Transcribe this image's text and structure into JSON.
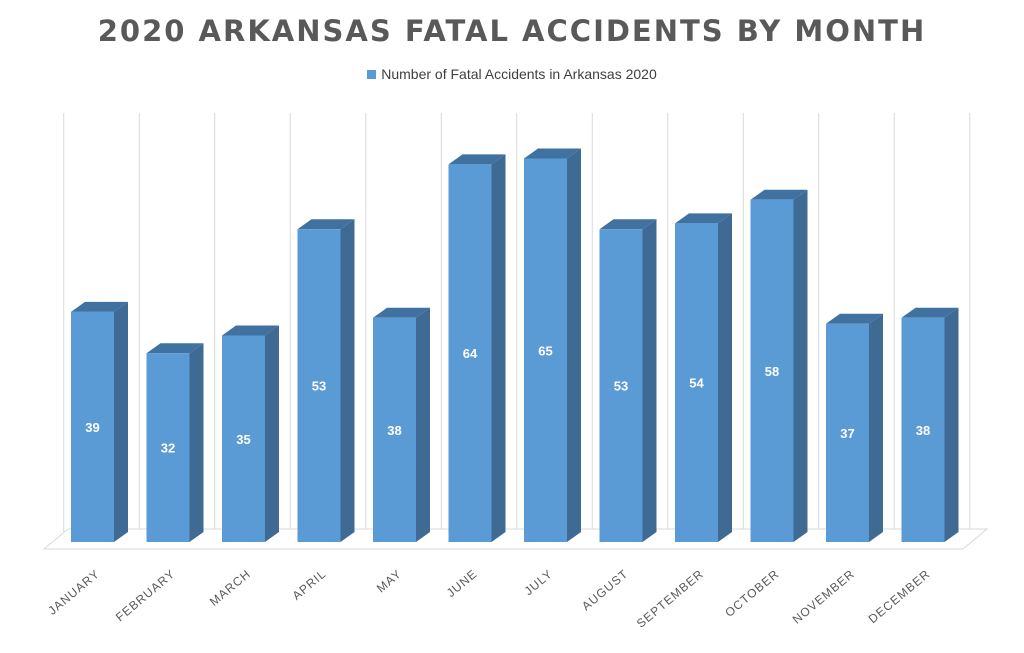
{
  "chart_data": {
    "type": "bar",
    "title": "2020 ARKANSAS FATAL ACCIDENTS BY MONTH",
    "categories": [
      "JANUARY",
      "FEBRUARY",
      "MARCH",
      "APRIL",
      "MAY",
      "JUNE",
      "JULY",
      "AUGUST",
      "SEPTEMBER",
      "OCTOBER",
      "NOVEMBER",
      "DECEMBER"
    ],
    "series": [
      {
        "name": "Number of Fatal Accidents in Arkansas 2020",
        "values": [
          39,
          32,
          35,
          53,
          38,
          64,
          65,
          53,
          54,
          58,
          37,
          38
        ]
      }
    ],
    "ylim": [
      0,
      70
    ],
    "grid": true,
    "legend_position": "top",
    "data_labels": true,
    "style": "3d-column",
    "colors": {
      "bar_front": "#5B9BD5",
      "bar_side": "#3E6A94",
      "bar_top": "#3F71A1",
      "grid": "#D9D9D9"
    }
  }
}
